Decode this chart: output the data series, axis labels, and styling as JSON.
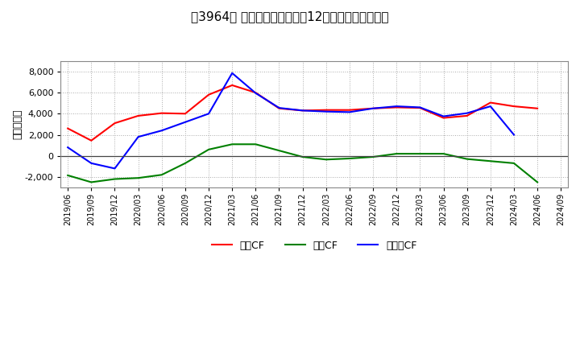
{
  "title": "［3964］ キャッシュフローの12か月移動合計の推移",
  "ylabel": "（百万円）",
  "background_color": "#ffffff",
  "plot_bg_color": "#ffffff",
  "grid_color": "#aaaaaa",
  "ylim": [
    -3000,
    9000
  ],
  "yticks": [
    -2000,
    0,
    2000,
    4000,
    6000,
    8000
  ],
  "dates": [
    "2019/06",
    "2019/09",
    "2019/12",
    "2020/03",
    "2020/06",
    "2020/09",
    "2020/12",
    "2021/03",
    "2021/06",
    "2021/09",
    "2021/12",
    "2022/03",
    "2022/06",
    "2022/09",
    "2022/12",
    "2023/03",
    "2023/06",
    "2023/09",
    "2023/12",
    "2024/03",
    "2024/06",
    "2024/09"
  ],
  "eigyo_cf": [
    2600,
    1450,
    3100,
    3800,
    4050,
    4000,
    5800,
    6700,
    6000,
    4500,
    4300,
    4350,
    4350,
    4500,
    4600,
    4550,
    3600,
    3800,
    5050,
    4700,
    4500,
    null
  ],
  "toshi_cf": [
    -1850,
    -2500,
    -2200,
    -2100,
    -1800,
    -700,
    600,
    1100,
    1100,
    500,
    -100,
    -350,
    -250,
    -100,
    200,
    200,
    200,
    -300,
    -500,
    -700,
    -2500,
    null
  ],
  "free_cf": [
    800,
    -700,
    -1200,
    1800,
    2400,
    3200,
    4000,
    7850,
    5950,
    4550,
    4300,
    4200,
    4150,
    4500,
    4700,
    4600,
    3750,
    4050,
    4700,
    2000,
    null,
    null
  ],
  "legend_labels": [
    "営業CF",
    "投資CF",
    "フリーCF"
  ],
  "eigyo_color": "#ff0000",
  "toshi_color": "#008000",
  "free_color": "#0000ff",
  "line_width": 1.5
}
